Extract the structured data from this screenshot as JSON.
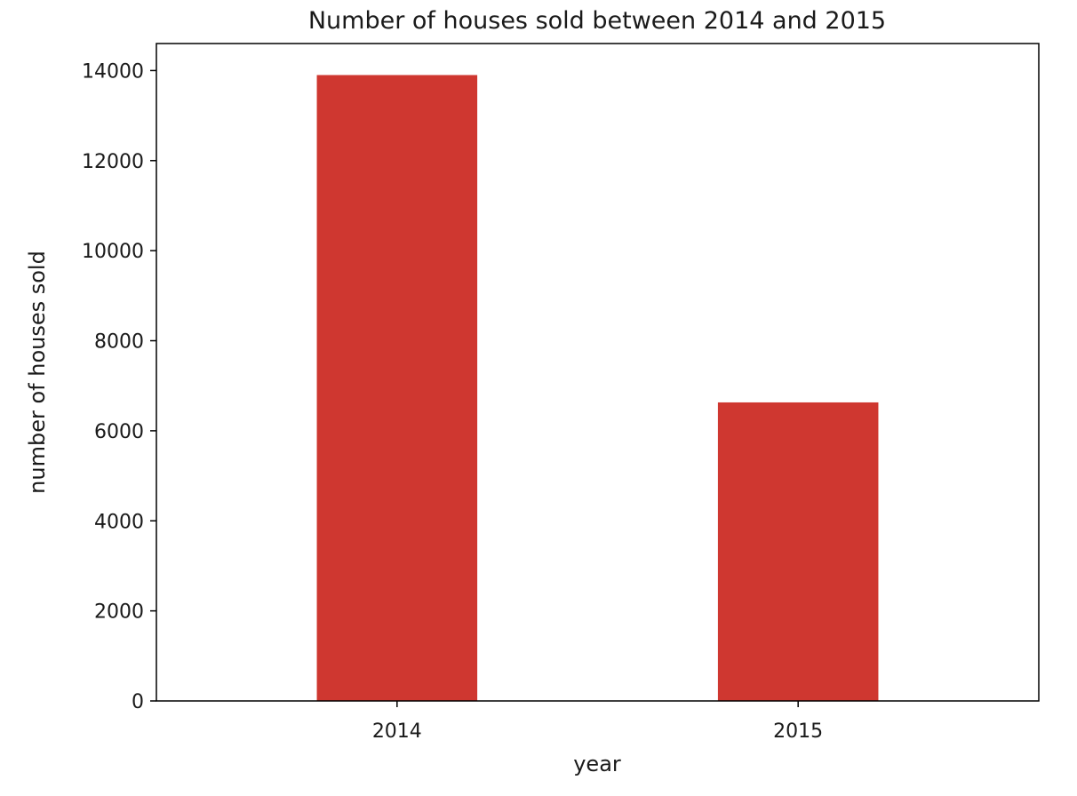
{
  "chart_data": {
    "type": "bar",
    "title": "Number of houses sold between 2014 and 2015",
    "xlabel": "year",
    "ylabel": "number of houses sold",
    "categories": [
      "2014",
      "2015"
    ],
    "values": [
      13900,
      6630
    ],
    "ylim": [
      0,
      14600
    ],
    "yticks": [
      0,
      2000,
      4000,
      6000,
      8000,
      10000,
      12000,
      14000
    ],
    "ytick_labels": [
      "0",
      "2000",
      "4000",
      "6000",
      "8000",
      "10000",
      "12000",
      "14000"
    ],
    "grid": false,
    "legend": "none",
    "bar_color": "#cf3730"
  }
}
